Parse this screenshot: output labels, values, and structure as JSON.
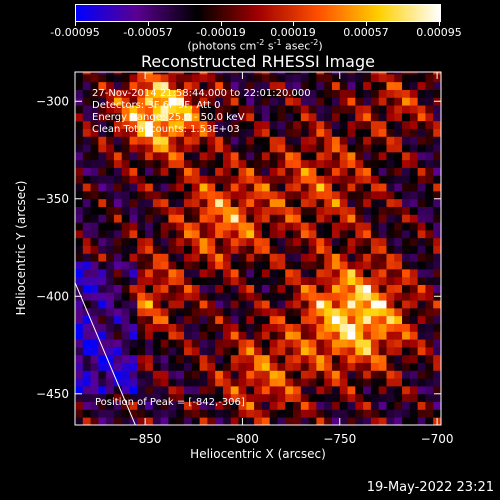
{
  "colorbar": {
    "ticks": [
      "-0.00095",
      "-0.00057",
      "-0.00019",
      "0.00019",
      "0.00057",
      "0.00095"
    ],
    "tick_values": [
      -0.00095,
      -0.00057,
      -0.00019,
      0.00019,
      0.00057,
      0.00095
    ],
    "range": [
      -0.00095,
      0.00095
    ],
    "unit_prefix": "(photons cm",
    "unit_e1": "-2",
    "unit_s": " s",
    "unit_e2": "-1",
    "unit_asec": " asec",
    "unit_e3": "-2",
    "unit_suffix": ")",
    "colors": [
      "#0000ff",
      "#5a0090",
      "#000000",
      "#a00000",
      "#ff5000",
      "#ffd000",
      "#ffffff"
    ]
  },
  "chart_data": {
    "type": "heatmap",
    "title": "Reconstructed RHESSI Image",
    "xlabel": "Heliocentric X (arcsec)",
    "ylabel": "Heliocentric Y (arcsec)",
    "xlim": [
      -886,
      -698
    ],
    "ylim": [
      -466,
      -285
    ],
    "x_ticks": [
      -850,
      -800,
      -750,
      -700
    ],
    "x_tick_labels": [
      "−850",
      "−800",
      "−750",
      "−700"
    ],
    "y_ticks": [
      -300,
      -350,
      -400,
      -450
    ],
    "y_tick_labels": [
      "−300",
      "−350",
      "−400",
      "−450"
    ],
    "annotations": [
      "27-Nov-2014 21:58:44.000 to 22:01:20.000",
      "Detectors: 3F 6F 9F, Att 0",
      "Energy Range: 25.0 - 50.0 keV",
      "Clean     Total counts: 1.53E+03"
    ],
    "peak_label": "Position of Peak = [",
    "peak_value": "-842,-306",
    "peak_close": "]",
    "peak_position": [
      -842,
      -306
    ],
    "limb_line": [
      [
        -886,
        -393
      ],
      [
        -855,
        -466
      ]
    ],
    "grid": false
  },
  "footer": {
    "timestamp": "19-May-2022 23:21"
  }
}
